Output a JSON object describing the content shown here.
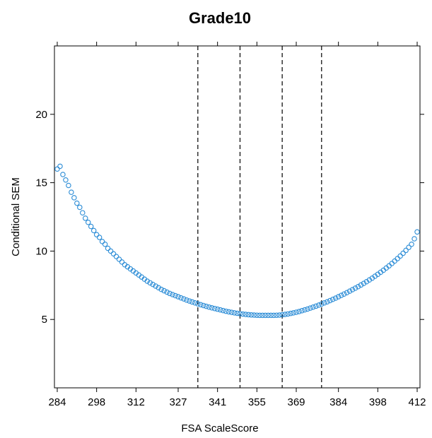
{
  "chart_data": {
    "type": "scatter",
    "title": "Grade10",
    "xlabel": "FSA ScaleScore",
    "ylabel": "Conditional SEM",
    "xlim": [
      283,
      413
    ],
    "ylim": [
      0,
      25
    ],
    "x_ticks": [
      284,
      298,
      312,
      327,
      341,
      355,
      369,
      384,
      398,
      412
    ],
    "y_ticks": [
      5,
      10,
      15,
      20
    ],
    "cut_scores": [
      334,
      349,
      364,
      378
    ],
    "point_color": "#2b8cd6",
    "grid": false,
    "series": [
      {
        "values": [
          [
            284,
            16.0
          ],
          [
            285,
            16.2
          ],
          [
            286,
            15.6
          ],
          [
            287,
            15.2
          ],
          [
            288,
            14.8
          ],
          [
            289,
            14.3
          ],
          [
            290,
            13.9
          ],
          [
            291,
            13.5
          ],
          [
            292,
            13.2
          ],
          [
            293,
            12.8
          ],
          [
            294,
            12.4
          ],
          [
            295,
            12.1
          ],
          [
            296,
            11.8
          ],
          [
            297,
            11.5
          ],
          [
            298,
            11.2
          ],
          [
            299,
            11.0
          ],
          [
            300,
            10.7
          ],
          [
            301,
            10.5
          ],
          [
            302,
            10.2
          ],
          [
            303,
            10.0
          ],
          [
            304,
            9.8
          ],
          [
            305,
            9.6
          ],
          [
            306,
            9.4
          ],
          [
            307,
            9.2
          ],
          [
            308,
            9.0
          ],
          [
            309,
            8.85
          ],
          [
            310,
            8.7
          ],
          [
            311,
            8.55
          ],
          [
            312,
            8.4
          ],
          [
            313,
            8.25
          ],
          [
            314,
            8.1
          ],
          [
            315,
            7.95
          ],
          [
            316,
            7.8
          ],
          [
            317,
            7.68
          ],
          [
            318,
            7.56
          ],
          [
            319,
            7.44
          ],
          [
            320,
            7.32
          ],
          [
            321,
            7.2
          ],
          [
            322,
            7.1
          ],
          [
            323,
            7.0
          ],
          [
            324,
            6.9
          ],
          [
            325,
            6.82
          ],
          [
            326,
            6.74
          ],
          [
            327,
            6.66
          ],
          [
            328,
            6.58
          ],
          [
            329,
            6.5
          ],
          [
            330,
            6.42
          ],
          [
            331,
            6.35
          ],
          [
            332,
            6.28
          ],
          [
            333,
            6.21
          ],
          [
            334,
            6.14
          ],
          [
            335,
            6.08
          ],
          [
            336,
            6.02
          ],
          [
            337,
            5.96
          ],
          [
            338,
            5.9
          ],
          [
            339,
            5.85
          ],
          [
            340,
            5.8
          ],
          [
            341,
            5.75
          ],
          [
            342,
            5.7
          ],
          [
            343,
            5.65
          ],
          [
            344,
            5.6
          ],
          [
            345,
            5.56
          ],
          [
            346,
            5.52
          ],
          [
            347,
            5.48
          ],
          [
            348,
            5.45
          ],
          [
            349,
            5.42
          ],
          [
            350,
            5.39
          ],
          [
            351,
            5.37
          ],
          [
            352,
            5.35
          ],
          [
            353,
            5.33
          ],
          [
            354,
            5.32
          ],
          [
            355,
            5.31
          ],
          [
            356,
            5.3
          ],
          [
            357,
            5.3
          ],
          [
            358,
            5.3
          ],
          [
            359,
            5.3
          ],
          [
            360,
            5.3
          ],
          [
            361,
            5.3
          ],
          [
            362,
            5.31
          ],
          [
            363,
            5.32
          ],
          [
            364,
            5.34
          ],
          [
            365,
            5.37
          ],
          [
            366,
            5.4
          ],
          [
            367,
            5.44
          ],
          [
            368,
            5.48
          ],
          [
            369,
            5.53
          ],
          [
            370,
            5.58
          ],
          [
            371,
            5.64
          ],
          [
            372,
            5.7
          ],
          [
            373,
            5.76
          ],
          [
            374,
            5.83
          ],
          [
            375,
            5.9
          ],
          [
            376,
            5.97
          ],
          [
            377,
            6.05
          ],
          [
            378,
            6.13
          ],
          [
            379,
            6.21
          ],
          [
            380,
            6.29
          ],
          [
            381,
            6.38
          ],
          [
            382,
            6.47
          ],
          [
            383,
            6.56
          ],
          [
            384,
            6.66
          ],
          [
            385,
            6.76
          ],
          [
            386,
            6.86
          ],
          [
            387,
            6.96
          ],
          [
            388,
            7.07
          ],
          [
            389,
            7.18
          ],
          [
            390,
            7.29
          ],
          [
            391,
            7.4
          ],
          [
            392,
            7.52
          ],
          [
            393,
            7.64
          ],
          [
            394,
            7.76
          ],
          [
            395,
            7.89
          ],
          [
            396,
            8.02
          ],
          [
            397,
            8.16
          ],
          [
            398,
            8.3
          ],
          [
            399,
            8.45
          ],
          [
            400,
            8.6
          ],
          [
            401,
            8.76
          ],
          [
            402,
            8.92
          ],
          [
            403,
            9.09
          ],
          [
            404,
            9.27
          ],
          [
            405,
            9.45
          ],
          [
            406,
            9.64
          ],
          [
            407,
            9.84
          ],
          [
            408,
            10.05
          ],
          [
            409,
            10.27
          ],
          [
            410,
            10.5
          ],
          [
            411,
            10.9
          ],
          [
            412,
            11.4
          ]
        ]
      }
    ]
  }
}
